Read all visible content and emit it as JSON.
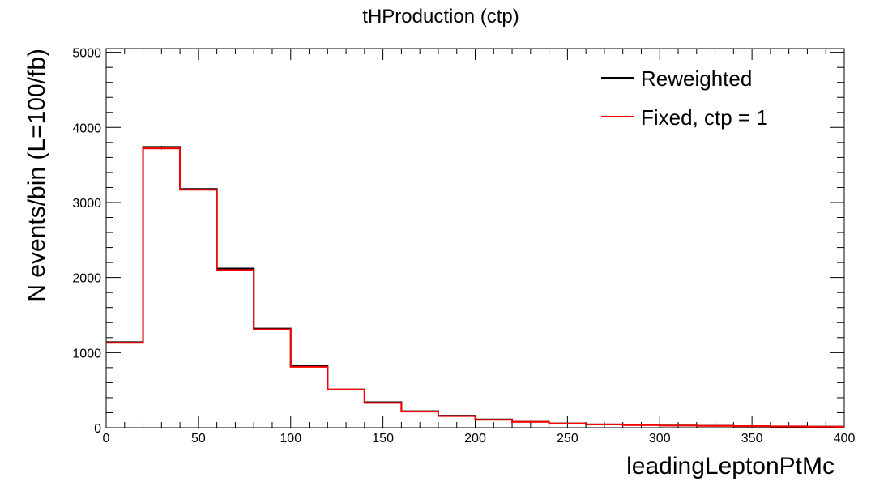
{
  "chart_data": {
    "type": "histogram",
    "title": "tHProduction (ctp)",
    "xlabel": "leadingLeptonPtMc",
    "ylabel": "N events/bin (L=100/fb)",
    "xlim": [
      0,
      400
    ],
    "ylim": [
      0,
      5050
    ],
    "x_ticks": [
      0,
      50,
      100,
      150,
      200,
      250,
      300,
      350,
      400
    ],
    "y_ticks": [
      0,
      1000,
      2000,
      3000,
      4000,
      5000
    ],
    "grid": false,
    "legend_position": "top-right",
    "bin_edges": [
      0,
      20,
      40,
      60,
      80,
      100,
      120,
      140,
      160,
      180,
      200,
      220,
      240,
      260,
      280,
      300,
      320,
      340,
      360,
      380,
      400
    ],
    "series": [
      {
        "name": "Reweighted",
        "color": "#000000",
        "values": [
          1140,
          3740,
          3180,
          2120,
          1320,
          820,
          510,
          340,
          220,
          160,
          110,
          80,
          58,
          45,
          36,
          30,
          25,
          20,
          17,
          14
        ]
      },
      {
        "name": "Fixed, ctp = 1",
        "color": "#ff0000",
        "values": [
          1130,
          3720,
          3170,
          2100,
          1310,
          810,
          510,
          330,
          215,
          155,
          105,
          78,
          56,
          44,
          35,
          28,
          24,
          20,
          16,
          13
        ]
      }
    ]
  }
}
